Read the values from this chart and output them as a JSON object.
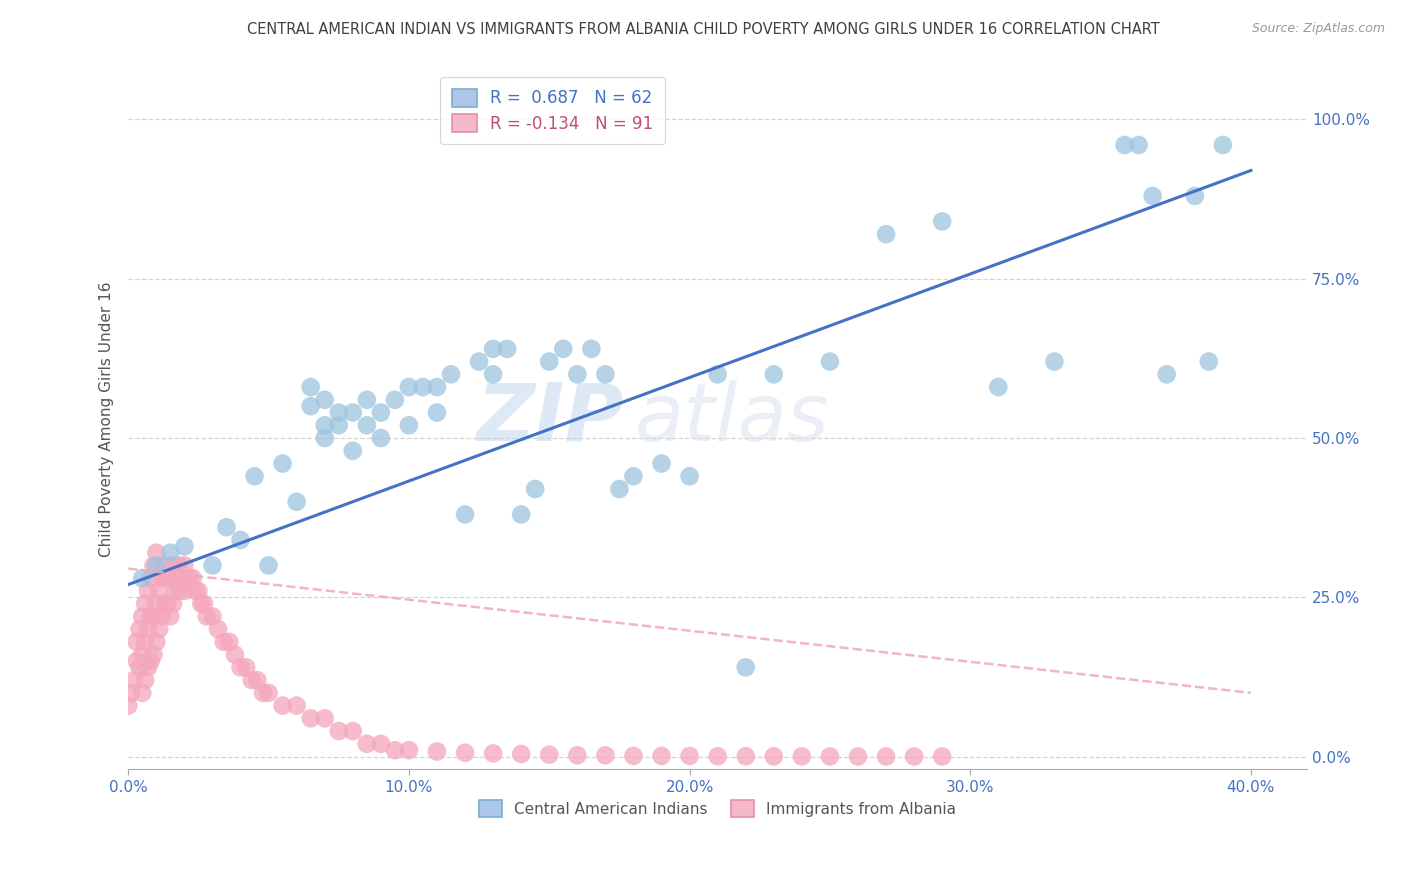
{
  "title": "CENTRAL AMERICAN INDIAN VS IMMIGRANTS FROM ALBANIA CHILD POVERTY AMONG GIRLS UNDER 16 CORRELATION CHART",
  "source": "Source: ZipAtlas.com",
  "ylabel": "Child Poverty Among Girls Under 16",
  "xlim": [
    0.0,
    0.42
  ],
  "ylim": [
    -0.02,
    1.08
  ],
  "legend1_label": "R =  0.687   N = 62",
  "legend2_label": "R = -0.134   N = 91",
  "legend1_color": "#aec6e8",
  "legend2_color": "#f4b8c8",
  "blue_scatter_x": [
    0.005,
    0.01,
    0.015,
    0.02,
    0.03,
    0.035,
    0.04,
    0.045,
    0.05,
    0.055,
    0.06,
    0.065,
    0.065,
    0.07,
    0.07,
    0.07,
    0.075,
    0.075,
    0.08,
    0.08,
    0.085,
    0.085,
    0.09,
    0.09,
    0.095,
    0.1,
    0.1,
    0.105,
    0.11,
    0.11,
    0.115,
    0.12,
    0.125,
    0.13,
    0.13,
    0.135,
    0.14,
    0.145,
    0.15,
    0.155,
    0.16,
    0.165,
    0.17,
    0.175,
    0.18,
    0.19,
    0.2,
    0.21,
    0.22,
    0.23,
    0.25,
    0.27,
    0.29,
    0.31,
    0.33,
    0.355,
    0.36,
    0.365,
    0.37,
    0.38,
    0.385,
    0.39
  ],
  "blue_scatter_y": [
    0.28,
    0.3,
    0.32,
    0.33,
    0.3,
    0.36,
    0.34,
    0.44,
    0.3,
    0.46,
    0.4,
    0.55,
    0.58,
    0.5,
    0.52,
    0.56,
    0.52,
    0.54,
    0.48,
    0.54,
    0.52,
    0.56,
    0.5,
    0.54,
    0.56,
    0.52,
    0.58,
    0.58,
    0.54,
    0.58,
    0.6,
    0.38,
    0.62,
    0.6,
    0.64,
    0.64,
    0.38,
    0.42,
    0.62,
    0.64,
    0.6,
    0.64,
    0.6,
    0.42,
    0.44,
    0.46,
    0.44,
    0.6,
    0.14,
    0.6,
    0.62,
    0.82,
    0.84,
    0.58,
    0.62,
    0.96,
    0.96,
    0.88,
    0.6,
    0.88,
    0.62,
    0.96
  ],
  "pink_scatter_x": [
    0.0,
    0.001,
    0.002,
    0.003,
    0.003,
    0.004,
    0.004,
    0.005,
    0.005,
    0.005,
    0.006,
    0.006,
    0.006,
    0.007,
    0.007,
    0.007,
    0.008,
    0.008,
    0.008,
    0.009,
    0.009,
    0.009,
    0.01,
    0.01,
    0.01,
    0.011,
    0.011,
    0.012,
    0.012,
    0.013,
    0.013,
    0.014,
    0.014,
    0.015,
    0.015,
    0.016,
    0.016,
    0.017,
    0.018,
    0.018,
    0.019,
    0.02,
    0.02,
    0.021,
    0.022,
    0.023,
    0.024,
    0.025,
    0.026,
    0.027,
    0.028,
    0.03,
    0.032,
    0.034,
    0.036,
    0.038,
    0.04,
    0.042,
    0.044,
    0.046,
    0.048,
    0.05,
    0.055,
    0.06,
    0.065,
    0.07,
    0.075,
    0.08,
    0.085,
    0.09,
    0.095,
    0.1,
    0.11,
    0.12,
    0.13,
    0.14,
    0.15,
    0.16,
    0.17,
    0.18,
    0.19,
    0.2,
    0.21,
    0.22,
    0.23,
    0.24,
    0.25,
    0.26,
    0.27,
    0.28,
    0.29
  ],
  "pink_scatter_y": [
    0.08,
    0.1,
    0.12,
    0.15,
    0.18,
    0.14,
    0.2,
    0.1,
    0.16,
    0.22,
    0.12,
    0.18,
    0.24,
    0.14,
    0.2,
    0.26,
    0.15,
    0.22,
    0.28,
    0.16,
    0.22,
    0.3,
    0.18,
    0.24,
    0.32,
    0.2,
    0.26,
    0.22,
    0.28,
    0.24,
    0.3,
    0.24,
    0.28,
    0.22,
    0.28,
    0.24,
    0.3,
    0.26,
    0.26,
    0.3,
    0.28,
    0.26,
    0.3,
    0.28,
    0.28,
    0.28,
    0.26,
    0.26,
    0.24,
    0.24,
    0.22,
    0.22,
    0.2,
    0.18,
    0.18,
    0.16,
    0.14,
    0.14,
    0.12,
    0.12,
    0.1,
    0.1,
    0.08,
    0.08,
    0.06,
    0.06,
    0.04,
    0.04,
    0.02,
    0.02,
    0.01,
    0.01,
    0.008,
    0.006,
    0.005,
    0.004,
    0.003,
    0.002,
    0.002,
    0.001,
    0.001,
    0.001,
    0.0005,
    0.0005,
    0.0003,
    0.0003,
    0.0002,
    0.0001,
    0.0001,
    0.0001,
    0.0001
  ],
  "blue_line_x": [
    0.0,
    0.4
  ],
  "blue_line_y": [
    0.27,
    0.92
  ],
  "pink_line_x": [
    0.0,
    0.4
  ],
  "pink_line_y": [
    0.295,
    0.1
  ],
  "watermark_top": "ZIP",
  "watermark_bottom": "atlas",
  "scatter_color_blue": "#9dc3e0",
  "scatter_color_pink": "#f4a6bc",
  "line_color_blue": "#4472c4",
  "line_color_pink": "#f4a6bc",
  "grid_color": "#d0d0d0",
  "title_color": "#404040",
  "axis_label_color": "#555555",
  "tick_color_x": "#4472c4",
  "tick_color_y": "#4472c4",
  "background_color": "#ffffff",
  "legend_box_color": "#aec6e8",
  "legend_box_color2": "#f4b8c8",
  "bottom_legend_label1": "Central American Indians",
  "bottom_legend_label2": "Immigrants from Albania",
  "y_axis_side": "right"
}
